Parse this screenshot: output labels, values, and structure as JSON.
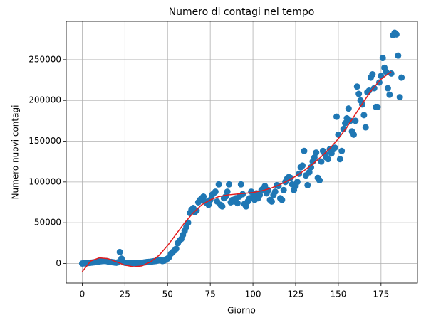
{
  "chart_data": {
    "type": "scatter",
    "title": "Numero di contagi nel tempo",
    "xlabel": "Giorno",
    "ylabel": "Numero nuovi contagi",
    "xlim": [
      -9.35,
      196.35
    ],
    "ylim": [
      -24000,
      297000
    ],
    "xticks": [
      0,
      25,
      50,
      75,
      100,
      125,
      150,
      175
    ],
    "yticks": [
      0,
      50000,
      100000,
      150000,
      200000,
      250000
    ],
    "grid": true,
    "series": [
      {
        "type": "scatter",
        "color": "#1f77b4",
        "x": [
          0,
          1,
          2,
          3,
          4,
          5,
          6,
          7,
          8,
          9,
          10,
          11,
          12,
          13,
          14,
          15,
          16,
          17,
          18,
          19,
          20,
          21,
          22,
          23,
          24,
          25,
          26,
          27,
          28,
          29,
          30,
          31,
          32,
          33,
          34,
          35,
          36,
          37,
          38,
          39,
          40,
          41,
          42,
          43,
          44,
          45,
          46,
          47,
          48,
          49,
          50,
          51,
          52,
          53,
          54,
          55,
          56,
          57,
          58,
          59,
          60,
          61,
          62,
          63,
          64,
          65,
          66,
          67,
          68,
          69,
          70,
          71,
          72,
          73,
          74,
          75,
          76,
          77,
          78,
          79,
          80,
          81,
          82,
          83,
          84,
          85,
          86,
          87,
          88,
          89,
          90,
          91,
          92,
          93,
          94,
          95,
          96,
          97,
          98,
          99,
          100,
          101,
          102,
          103,
          104,
          105,
          106,
          107,
          108,
          109,
          110,
          111,
          112,
          113,
          114,
          115,
          116,
          117,
          118,
          119,
          120,
          121,
          122,
          123,
          124,
          125,
          126,
          127,
          128,
          129,
          130,
          131,
          132,
          133,
          134,
          135,
          136,
          137,
          138,
          139,
          140,
          141,
          142,
          143,
          144,
          145,
          146,
          147,
          148,
          149,
          150,
          151,
          152,
          153,
          154,
          155,
          156,
          157,
          158,
          159,
          160,
          161,
          162,
          163,
          164,
          165,
          166,
          167,
          168,
          169,
          170,
          171,
          172,
          173,
          174,
          175,
          176,
          177,
          178,
          179,
          180,
          181,
          182,
          183,
          184,
          185,
          186,
          187
        ],
        "values": [
          0,
          200,
          300,
          500,
          800,
          1000,
          1200,
          1500,
          1800,
          2200,
          2500,
          2800,
          3000,
          3200,
          3000,
          2500,
          2000,
          1800,
          1500,
          1200,
          1000,
          1500,
          14000,
          6000,
          2000,
          1000,
          800,
          700,
          600,
          500,
          500,
          600,
          700,
          800,
          900,
          1000,
          1200,
          1500,
          1800,
          2000,
          2200,
          2500,
          2800,
          3000,
          3500,
          4000,
          4500,
          3000,
          3500,
          5000,
          6000,
          8000,
          12000,
          14000,
          16000,
          18000,
          25000,
          28000,
          30000,
          35000,
          40000,
          45000,
          50000,
          62000,
          66000,
          68000,
          63000,
          65000,
          75000,
          78000,
          80000,
          82000,
          76000,
          74000,
          72000,
          78000,
          84000,
          86000,
          88000,
          76000,
          97000,
          72000,
          70000,
          80000,
          82000,
          88000,
          97000,
          75000,
          78000,
          76000,
          80000,
          74000,
          82000,
          97000,
          85000,
          73000,
          70000,
          76000,
          80000,
          88000,
          82000,
          78000,
          86000,
          80000,
          84000,
          90000,
          92000,
          95000,
          86000,
          90000,
          78000,
          76000,
          84000,
          88000,
          96000,
          95000,
          80000,
          78000,
          90000,
          100000,
          104000,
          106000,
          105000,
          97000,
          90000,
          95000,
          100000,
          110000,
          118000,
          120000,
          138000,
          108000,
          96000,
          112000,
          118000,
          125000,
          130000,
          136000,
          105000,
          102000,
          125000,
          138000,
          135000,
          130000,
          128000,
          140000,
          135000,
          140000,
          142000,
          180000,
          158000,
          128000,
          138000,
          165000,
          172000,
          178000,
          190000,
          175000,
          162000,
          158000,
          175000,
          217000,
          208000,
          200000,
          195000,
          182000,
          167000,
          210000,
          212000,
          228000,
          232000,
          215000,
          192000,
          192000,
          222000,
          230000,
          252000,
          240000,
          235000,
          215000,
          207000,
          233000,
          280000,
          283000,
          281000,
          255000,
          204000,
          228000
        ]
      },
      {
        "type": "line",
        "color": "#e41a1c",
        "x": [
          0,
          5,
          10,
          15,
          20,
          25,
          30,
          35,
          40,
          45,
          50,
          55,
          60,
          65,
          70,
          75,
          80,
          85,
          90,
          95,
          100,
          105,
          110,
          115,
          120,
          125,
          130,
          135,
          140,
          145,
          150,
          155,
          160,
          165,
          170,
          175,
          180,
          181
        ],
        "values": [
          -10000,
          3000,
          7000,
          6000,
          2000,
          -2000,
          -4000,
          -3000,
          2000,
          10000,
          22000,
          36000,
          50000,
          62000,
          72000,
          78000,
          82000,
          84000,
          85000,
          86000,
          87000,
          89000,
          92000,
          96000,
          101000,
          107000,
          114000,
          122000,
          131000,
          141000,
          153000,
          167000,
          183000,
          199000,
          214000,
          226000,
          234000,
          235000
        ]
      }
    ]
  }
}
